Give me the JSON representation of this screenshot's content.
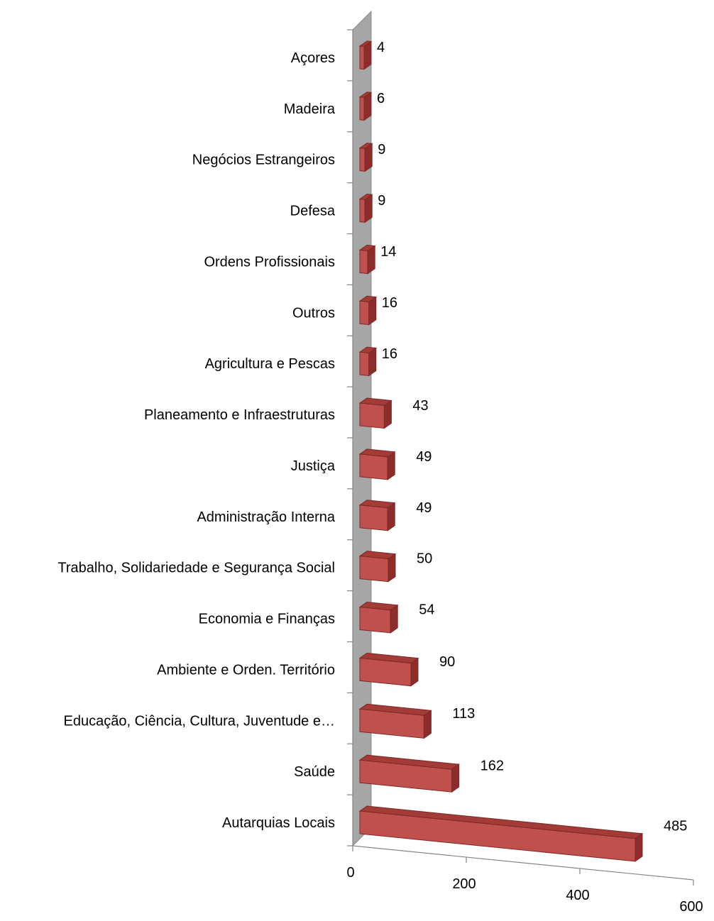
{
  "chart_data": {
    "type": "bar",
    "orientation": "horizontal",
    "three_d": true,
    "categories": [
      "Açores",
      "Madeira",
      "Negócios Estrangeiros",
      "Defesa",
      "Ordens Profissionais",
      "Outros",
      "Agricultura e Pescas",
      "Planeamento e Infraestruturas",
      "Justiça",
      "Administração Interna",
      "Trabalho, Solidariedade e Segurança Social",
      "Economia e Finanças",
      "Ambiente e Orden. Território",
      "Educação, Ciência, Cultura, Juventude e…",
      "Saúde",
      "Autarquias Locais"
    ],
    "values": [
      4,
      6,
      9,
      9,
      14,
      16,
      16,
      43,
      49,
      49,
      50,
      54,
      90,
      113,
      162,
      485
    ],
    "x_ticks": [
      "0",
      "200",
      "400",
      "600"
    ],
    "xlim": [
      0,
      600
    ],
    "title": "",
    "xlabel": "",
    "ylabel": "",
    "grid": false,
    "legend": "none",
    "colors": {
      "bar_front": "#c0504d",
      "bar_top": "#a33b38",
      "bar_side": "#8c2d2b",
      "bar_stroke": "#7f2826",
      "back_wall": "#a6a6a6",
      "back_wall_dark": "#8c8c8c",
      "axis": "#868686"
    }
  }
}
